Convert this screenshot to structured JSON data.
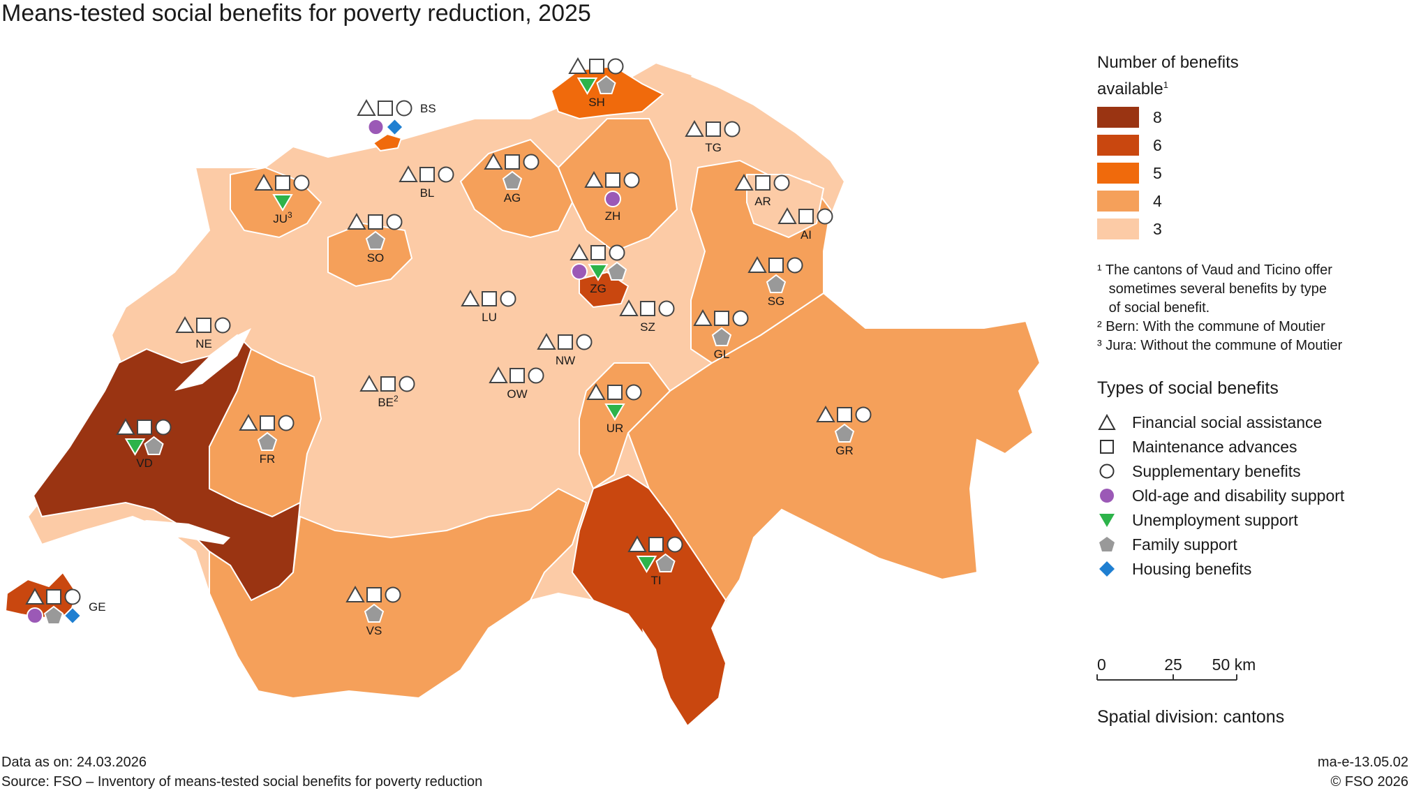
{
  "title": "Means-tested social benefits for poverty reduction, 2025",
  "legend": {
    "heading_line1": "Number of benefits",
    "heading_line2": "available",
    "heading_sup": "1",
    "classes": [
      {
        "label": "8",
        "color": "#9a3412"
      },
      {
        "label": "6",
        "color": "#c9470f"
      },
      {
        "label": "5",
        "color": "#f06a0c"
      },
      {
        "label": "4",
        "color": "#f5a05a"
      },
      {
        "label": "3",
        "color": "#fccba6"
      }
    ]
  },
  "footnotes": [
    "¹ The cantons of Vaud and Ticino offer",
    "   sometimes several benefits by type",
    "   of social benefit.",
    "² Bern: With the commune of Moutier",
    "³ Jura: Without the commune of Moutier"
  ],
  "types": {
    "heading": "Types of social benefits",
    "items": [
      {
        "label": "Financial social assistance",
        "icon": "triangle-outline-icon"
      },
      {
        "label": "Maintenance advances",
        "icon": "square-outline-icon"
      },
      {
        "label": "Supplementary benefits",
        "icon": "circle-outline-icon"
      },
      {
        "label": "Old-age and disability support",
        "icon": "purple-circle-icon",
        "color": "#9b59b6"
      },
      {
        "label": "Unemployment support",
        "icon": "green-triangle-icon",
        "color": "#2db34a"
      },
      {
        "label": "Family support",
        "icon": "grey-pentagon-icon",
        "color": "#999999"
      },
      {
        "label": "Housing benefits",
        "icon": "blue-diamond-icon",
        "color": "#1f7fd1"
      }
    ]
  },
  "scale": {
    "ticks": [
      "0",
      "25",
      "50 km"
    ]
  },
  "spatial_division": "Spatial division: cantons",
  "footer": {
    "data_as_on": "Data as on: 24.03.2026",
    "source": "Source: FSO – Inventory of means-tested social benefits for poverty reduction",
    "code": "ma-e-13.05.02",
    "copyright": "© FSO 2026"
  },
  "cantons": [
    {
      "code": "SH",
      "count": 5,
      "benefits": [
        "green",
        "pentagon"
      ]
    },
    {
      "code": "BS",
      "count": 5,
      "benefits": [
        "purple",
        "diamond"
      ]
    },
    {
      "code": "TG",
      "count": 3,
      "benefits": []
    },
    {
      "code": "BL",
      "count": 3,
      "benefits": []
    },
    {
      "code": "AG",
      "count": 4,
      "benefits": [
        "pentagon"
      ]
    },
    {
      "code": "ZH",
      "count": 4,
      "benefits": [
        "purple"
      ]
    },
    {
      "code": "JU",
      "sup": "3",
      "count": 4,
      "benefits": [
        "green"
      ]
    },
    {
      "code": "AR",
      "count": 3,
      "benefits": []
    },
    {
      "code": "AI",
      "count": 3,
      "benefits": []
    },
    {
      "code": "SO",
      "count": 4,
      "benefits": [
        "pentagon"
      ]
    },
    {
      "code": "ZG",
      "count": 6,
      "benefits": [
        "purple",
        "green",
        "pentagon"
      ]
    },
    {
      "code": "SG",
      "count": 4,
      "benefits": [
        "pentagon"
      ]
    },
    {
      "code": "LU",
      "count": 3,
      "benefits": []
    },
    {
      "code": "SZ",
      "count": 3,
      "benefits": []
    },
    {
      "code": "NE",
      "count": 3,
      "benefits": []
    },
    {
      "code": "GL",
      "count": 4,
      "benefits": [
        "pentagon"
      ]
    },
    {
      "code": "NW",
      "count": 3,
      "benefits": []
    },
    {
      "code": "OW",
      "count": 3,
      "benefits": []
    },
    {
      "code": "BE",
      "sup": "2",
      "count": 3,
      "benefits": []
    },
    {
      "code": "UR",
      "count": 4,
      "benefits": [
        "green"
      ]
    },
    {
      "code": "GR",
      "count": 4,
      "benefits": [
        "pentagon"
      ]
    },
    {
      "code": "VD",
      "count": 8,
      "benefits": [
        "green",
        "pentagon"
      ]
    },
    {
      "code": "FR",
      "count": 4,
      "benefits": [
        "pentagon"
      ]
    },
    {
      "code": "TI",
      "count": 6,
      "benefits": [
        "green",
        "pentagon"
      ]
    },
    {
      "code": "VS",
      "count": 4,
      "benefits": [
        "pentagon"
      ]
    },
    {
      "code": "GE",
      "count": 6,
      "benefits": [
        "purple",
        "pentagon",
        "diamond"
      ]
    }
  ]
}
